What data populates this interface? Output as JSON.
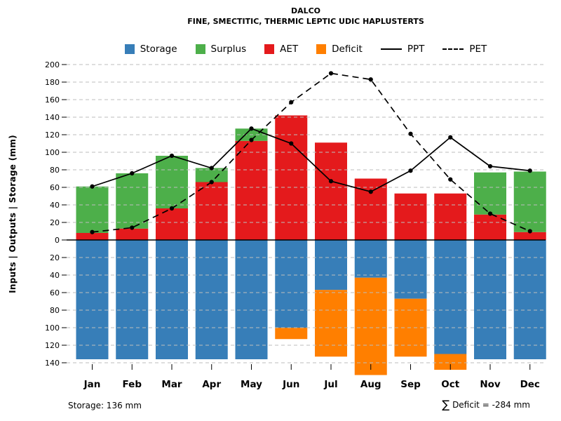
{
  "header": {
    "title": "DALCO",
    "subtitle": "FINE, SMECTITIC, THERMIC LEPTIC UDIC HAPLUSTERTS"
  },
  "legend": {
    "items": [
      {
        "label": "Storage",
        "swatch": "box",
        "color": "#377EB8"
      },
      {
        "label": "Surplus",
        "swatch": "box",
        "color": "#4DAF4A"
      },
      {
        "label": "AET",
        "swatch": "box",
        "color": "#E41A1C"
      },
      {
        "label": "Deficit",
        "swatch": "box",
        "color": "#FF7F00"
      },
      {
        "label": "PPT",
        "swatch": "solid-line",
        "color": "#000000"
      },
      {
        "label": "PET",
        "swatch": "dashed-line",
        "color": "#000000"
      }
    ]
  },
  "footer": {
    "storage_note": "Storage: 136 mm",
    "deficit_sigma": "∑",
    "deficit_note": "Deficit = -284 mm"
  },
  "chart_data": {
    "type": "combo-bar-line",
    "title": "DALCO",
    "subtitle": "FINE, SMECTITIC, THERMIC LEPTIC UDIC HAPLUSTERTS",
    "ylabel": "Inputs | Outputs | Storage (mm)",
    "categories": [
      "Jan",
      "Feb",
      "Mar",
      "Apr",
      "May",
      "Jun",
      "Jul",
      "Aug",
      "Sep",
      "Oct",
      "Nov",
      "Dec"
    ],
    "y_upper_max": 200,
    "y_lower_max": 140,
    "tick_step": 20,
    "y_ticks_upper": [
      0,
      20,
      40,
      60,
      80,
      100,
      120,
      140,
      160,
      180,
      200
    ],
    "y_ticks_lower": [
      20,
      40,
      60,
      80,
      100,
      120,
      140
    ],
    "grid": "dashed-horizontal",
    "legend_position": "top",
    "series": [
      {
        "name": "AET",
        "kind": "bar",
        "stack": "up",
        "color": "#E41A1C",
        "values": [
          8,
          13,
          36,
          66,
          113,
          142,
          111,
          70,
          53,
          53,
          29,
          9
        ]
      },
      {
        "name": "Surplus",
        "kind": "bar",
        "stack": "up",
        "color": "#4DAF4A",
        "values": [
          53,
          63,
          60,
          16,
          14,
          0,
          0,
          0,
          0,
          0,
          48,
          69
        ]
      },
      {
        "name": "Storage",
        "kind": "bar",
        "stack": "down",
        "color": "#377EB8",
        "values": [
          136,
          136,
          136,
          136,
          136,
          100,
          57,
          43,
          67,
          130,
          136,
          136
        ]
      },
      {
        "name": "Deficit",
        "kind": "bar",
        "stack": "down",
        "color": "#FF7F00",
        "values": [
          0,
          0,
          0,
          0,
          0,
          13,
          76,
          111,
          66,
          18,
          0,
          0
        ]
      },
      {
        "name": "PPT",
        "kind": "line",
        "style": "solid",
        "color": "#000000",
        "values": [
          61,
          76,
          96,
          82,
          127,
          110,
          67,
          55,
          79,
          117,
          84,
          79
        ]
      },
      {
        "name": "PET",
        "kind": "line",
        "style": "dashed",
        "color": "#000000",
        "values": [
          9,
          14,
          36,
          66,
          114,
          157,
          190,
          183,
          121,
          69,
          30,
          10
        ]
      }
    ],
    "annotations": {
      "storage_capacity_mm": "136",
      "sum_deficit_mm": "-284"
    }
  }
}
